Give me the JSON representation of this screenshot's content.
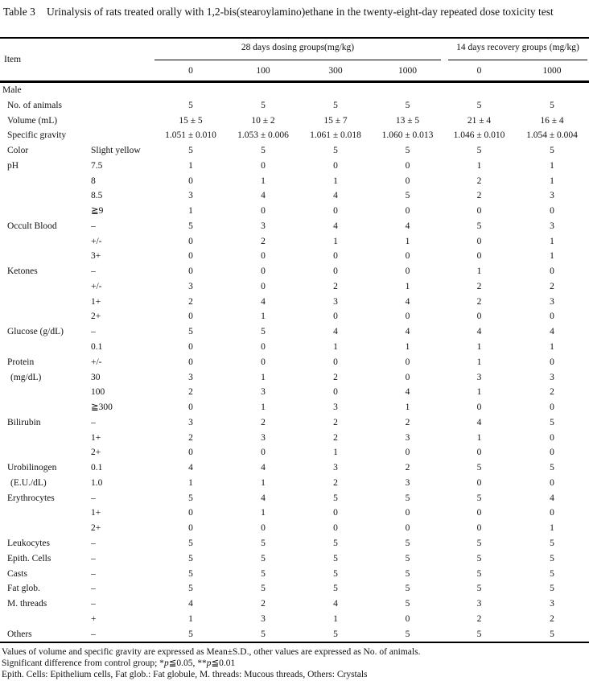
{
  "title": {
    "label": "Table 3",
    "text": "Urinalysis of rats treated orally with 1,2-bis(stearoylamino)ethane in the twenty-eight-day repeated dose toxicity test"
  },
  "header": {
    "item_label": "Item",
    "dosing_group_label": "28 days dosing groups(mg/kg)",
    "recovery_group_label": "14 days recovery groups (mg/kg)",
    "dose_labels": [
      "0",
      "100",
      "300",
      "1000",
      "0",
      "1000"
    ]
  },
  "table": {
    "rows": [
      {
        "item": "Male",
        "section": true
      },
      {
        "item": "No. of animals",
        "qualifier": "",
        "values": [
          "5",
          "5",
          "5",
          "5",
          "5",
          "5"
        ]
      },
      {
        "item": "Volume (mL)",
        "qualifier": "",
        "values": [
          "15 ± 5",
          "10 ± 2",
          "15 ± 7",
          "13 ± 5",
          "21 ± 4",
          "16 ± 4"
        ]
      },
      {
        "item": "Specific gravity",
        "qualifier": "",
        "values": [
          "1.051 ± 0.010",
          "1.053 ± 0.006",
          "1.061 ± 0.018",
          "1.060 ± 0.013",
          "1.046 ± 0.010",
          "1.054 ± 0.004"
        ]
      },
      {
        "item": "Color",
        "qualifier": "Slight yellow",
        "values": [
          "5",
          "5",
          "5",
          "5",
          "5",
          "5"
        ]
      },
      {
        "item": "pH",
        "qualifier": "7.5",
        "values": [
          "1",
          "0",
          "0",
          "0",
          "1",
          "1"
        ]
      },
      {
        "item": "",
        "qualifier": "8",
        "values": [
          "0",
          "1",
          "1",
          "0",
          "2",
          "1"
        ]
      },
      {
        "item": "",
        "qualifier": "8.5",
        "values": [
          "3",
          "4",
          "4",
          "5",
          "2",
          "3"
        ]
      },
      {
        "item": "",
        "qualifier": "≧9",
        "values": [
          "1",
          "0",
          "0",
          "0",
          "0",
          "0"
        ]
      },
      {
        "item": "Occult Blood",
        "qualifier": "–",
        "values": [
          "5",
          "3",
          "4",
          "4",
          "5",
          "3"
        ]
      },
      {
        "item": "",
        "qualifier": "+/-",
        "values": [
          "0",
          "2",
          "1",
          "1",
          "0",
          "1"
        ]
      },
      {
        "item": "",
        "qualifier": "3+",
        "values": [
          "0",
          "0",
          "0",
          "0",
          "0",
          "1"
        ]
      },
      {
        "item": "Ketones",
        "qualifier": "–",
        "values": [
          "0",
          "0",
          "0",
          "0",
          "1",
          "0"
        ]
      },
      {
        "item": "",
        "qualifier": "+/-",
        "values": [
          "3",
          "0",
          "2",
          "1",
          "2",
          "2"
        ]
      },
      {
        "item": "",
        "qualifier": "1+",
        "values": [
          "2",
          "4",
          "3",
          "4",
          "2",
          "3"
        ]
      },
      {
        "item": "",
        "qualifier": "2+",
        "values": [
          "0",
          "1",
          "0",
          "0",
          "0",
          "0"
        ]
      },
      {
        "item": "Glucose (g/dL)",
        "qualifier": "–",
        "values": [
          "5",
          "5",
          "4",
          "4",
          "4",
          "4"
        ]
      },
      {
        "item": "",
        "qualifier": "0.1",
        "values": [
          "0",
          "0",
          "1",
          "1",
          "1",
          "1"
        ]
      },
      {
        "item": "Protein",
        "qualifier": "+/-",
        "values": [
          "0",
          "0",
          "0",
          "0",
          "1",
          "0"
        ]
      },
      {
        "item": "(mg/dL)",
        "indent": true,
        "qualifier": "30",
        "values": [
          "3",
          "1",
          "2",
          "0",
          "3",
          "3"
        ]
      },
      {
        "item": "",
        "qualifier": "100",
        "values": [
          "2",
          "3",
          "0",
          "4",
          "1",
          "2"
        ]
      },
      {
        "item": "",
        "qualifier": "≧300",
        "values": [
          "0",
          "1",
          "3",
          "1",
          "0",
          "0"
        ]
      },
      {
        "item": "Bilirubin",
        "qualifier": "–",
        "values": [
          "3",
          "2",
          "2",
          "2",
          "4",
          "5"
        ]
      },
      {
        "item": "",
        "qualifier": "1+",
        "values": [
          "2",
          "3",
          "2",
          "3",
          "1",
          "0"
        ]
      },
      {
        "item": "",
        "qualifier": "2+",
        "values": [
          "0",
          "0",
          "1",
          "0",
          "0",
          "0"
        ]
      },
      {
        "item": "Urobilinogen",
        "qualifier": "0.1",
        "values": [
          "4",
          "4",
          "3",
          "2",
          "5",
          "5"
        ]
      },
      {
        "item": "(E.U./dL)",
        "indent": true,
        "qualifier": "1.0",
        "values": [
          "1",
          "1",
          "2",
          "3",
          "0",
          "0"
        ]
      },
      {
        "item": "Erythrocytes",
        "qualifier": "–",
        "values": [
          "5",
          "4",
          "5",
          "5",
          "5",
          "4"
        ]
      },
      {
        "item": "",
        "qualifier": "1+",
        "values": [
          "0",
          "1",
          "0",
          "0",
          "0",
          "0"
        ]
      },
      {
        "item": "",
        "qualifier": "2+",
        "values": [
          "0",
          "0",
          "0",
          "0",
          "0",
          "1"
        ]
      },
      {
        "item": "Leukocytes",
        "qualifier": "–",
        "values": [
          "5",
          "5",
          "5",
          "5",
          "5",
          "5"
        ]
      },
      {
        "item": "Epith. Cells",
        "qualifier": "–",
        "values": [
          "5",
          "5",
          "5",
          "5",
          "5",
          "5"
        ]
      },
      {
        "item": "Casts",
        "qualifier": "–",
        "values": [
          "5",
          "5",
          "5",
          "5",
          "5",
          "5"
        ]
      },
      {
        "item": "Fat glob.",
        "qualifier": "–",
        "values": [
          "5",
          "5",
          "5",
          "5",
          "5",
          "5"
        ]
      },
      {
        "item": "M. threads",
        "qualifier": "–",
        "values": [
          "4",
          "2",
          "4",
          "5",
          "3",
          "3"
        ]
      },
      {
        "item": "",
        "qualifier": "+",
        "values": [
          "1",
          "3",
          "1",
          "0",
          "2",
          "2"
        ]
      },
      {
        "item": "Others",
        "qualifier": "–",
        "values": [
          "5",
          "5",
          "5",
          "5",
          "5",
          "5"
        ]
      }
    ]
  },
  "footnotes": [
    [
      {
        "text": "Values of volume and specific gravity are expressed as Mean±S.D., other values are expressed as No. of animals."
      }
    ],
    [
      {
        "text": "Significant difference from control group; *"
      },
      {
        "text": "p",
        "italic": true
      },
      {
        "text": "≦0.05, **"
      },
      {
        "text": "p",
        "italic": true
      },
      {
        "text": "≦0.01"
      }
    ],
    [
      {
        "text": "Epith. Cells: Epithelium cells, Fat glob.: Fat globule, M. threads: Mucous threads, Others: Crystals"
      }
    ]
  ]
}
